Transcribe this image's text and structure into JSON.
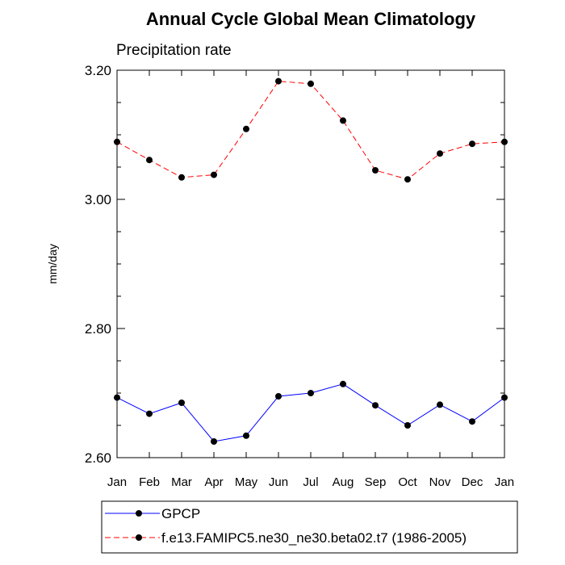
{
  "chart_data": {
    "type": "line",
    "title": "Annual Cycle Global Mean Climatology",
    "subtitle": "Precipitation rate",
    "ylabel": "mm/day",
    "xlabel": "",
    "categories": [
      "Jan",
      "Feb",
      "Mar",
      "Apr",
      "May",
      "Jun",
      "Jul",
      "Aug",
      "Sep",
      "Oct",
      "Nov",
      "Dec",
      "Jan"
    ],
    "ylim": [
      2.6,
      3.2
    ],
    "yticks": [
      "2.60",
      "2.80",
      "3.00",
      "3.20"
    ],
    "series": [
      {
        "name": "GPCP",
        "color": "#0000ff",
        "dash": "solid",
        "marker": "circle",
        "values": [
          2.693,
          2.668,
          2.685,
          2.625,
          2.634,
          2.695,
          2.7,
          2.714,
          2.681,
          2.65,
          2.682,
          2.656,
          2.693
        ]
      },
      {
        "name": "f.e13.FAMIPC5.ne30_ne30.beta02.t7 (1986-2005)",
        "color": "#ff0000",
        "dash": "dashed",
        "marker": "circle",
        "values": [
          3.089,
          3.061,
          3.034,
          3.038,
          3.109,
          3.183,
          3.179,
          3.122,
          3.045,
          3.031,
          3.071,
          3.086,
          3.089
        ]
      }
    ],
    "legend_position": "bottom"
  }
}
